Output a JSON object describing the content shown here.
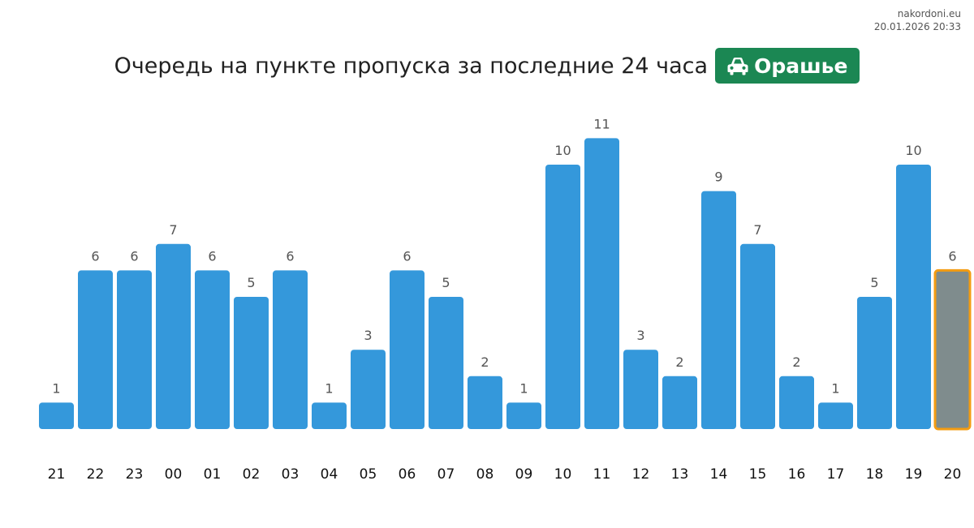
{
  "site": {
    "domain": "nakordoni.eu",
    "timestamp": "20.01.2026 20:33"
  },
  "badge": {
    "label": "Орашье",
    "icon": "car-icon",
    "color": "#1b8753"
  },
  "chart_data": {
    "type": "bar",
    "title": "Очередь на пункте пропуска за последние 24 часа",
    "categories": [
      "21",
      "22",
      "23",
      "00",
      "01",
      "02",
      "03",
      "04",
      "05",
      "06",
      "07",
      "08",
      "09",
      "10",
      "11",
      "12",
      "13",
      "14",
      "15",
      "16",
      "17",
      "18",
      "19",
      "20"
    ],
    "values": [
      1,
      6,
      6,
      7,
      6,
      5,
      6,
      1,
      3,
      6,
      5,
      2,
      1,
      10,
      11,
      3,
      2,
      9,
      7,
      2,
      1,
      5,
      10,
      6
    ],
    "ylim": [
      0,
      11
    ],
    "grid": false,
    "bar_color": "#3498db",
    "current_hour": "20",
    "current_bar_color": "#7f8c8d",
    "current_bar_border": "#f39c12"
  }
}
